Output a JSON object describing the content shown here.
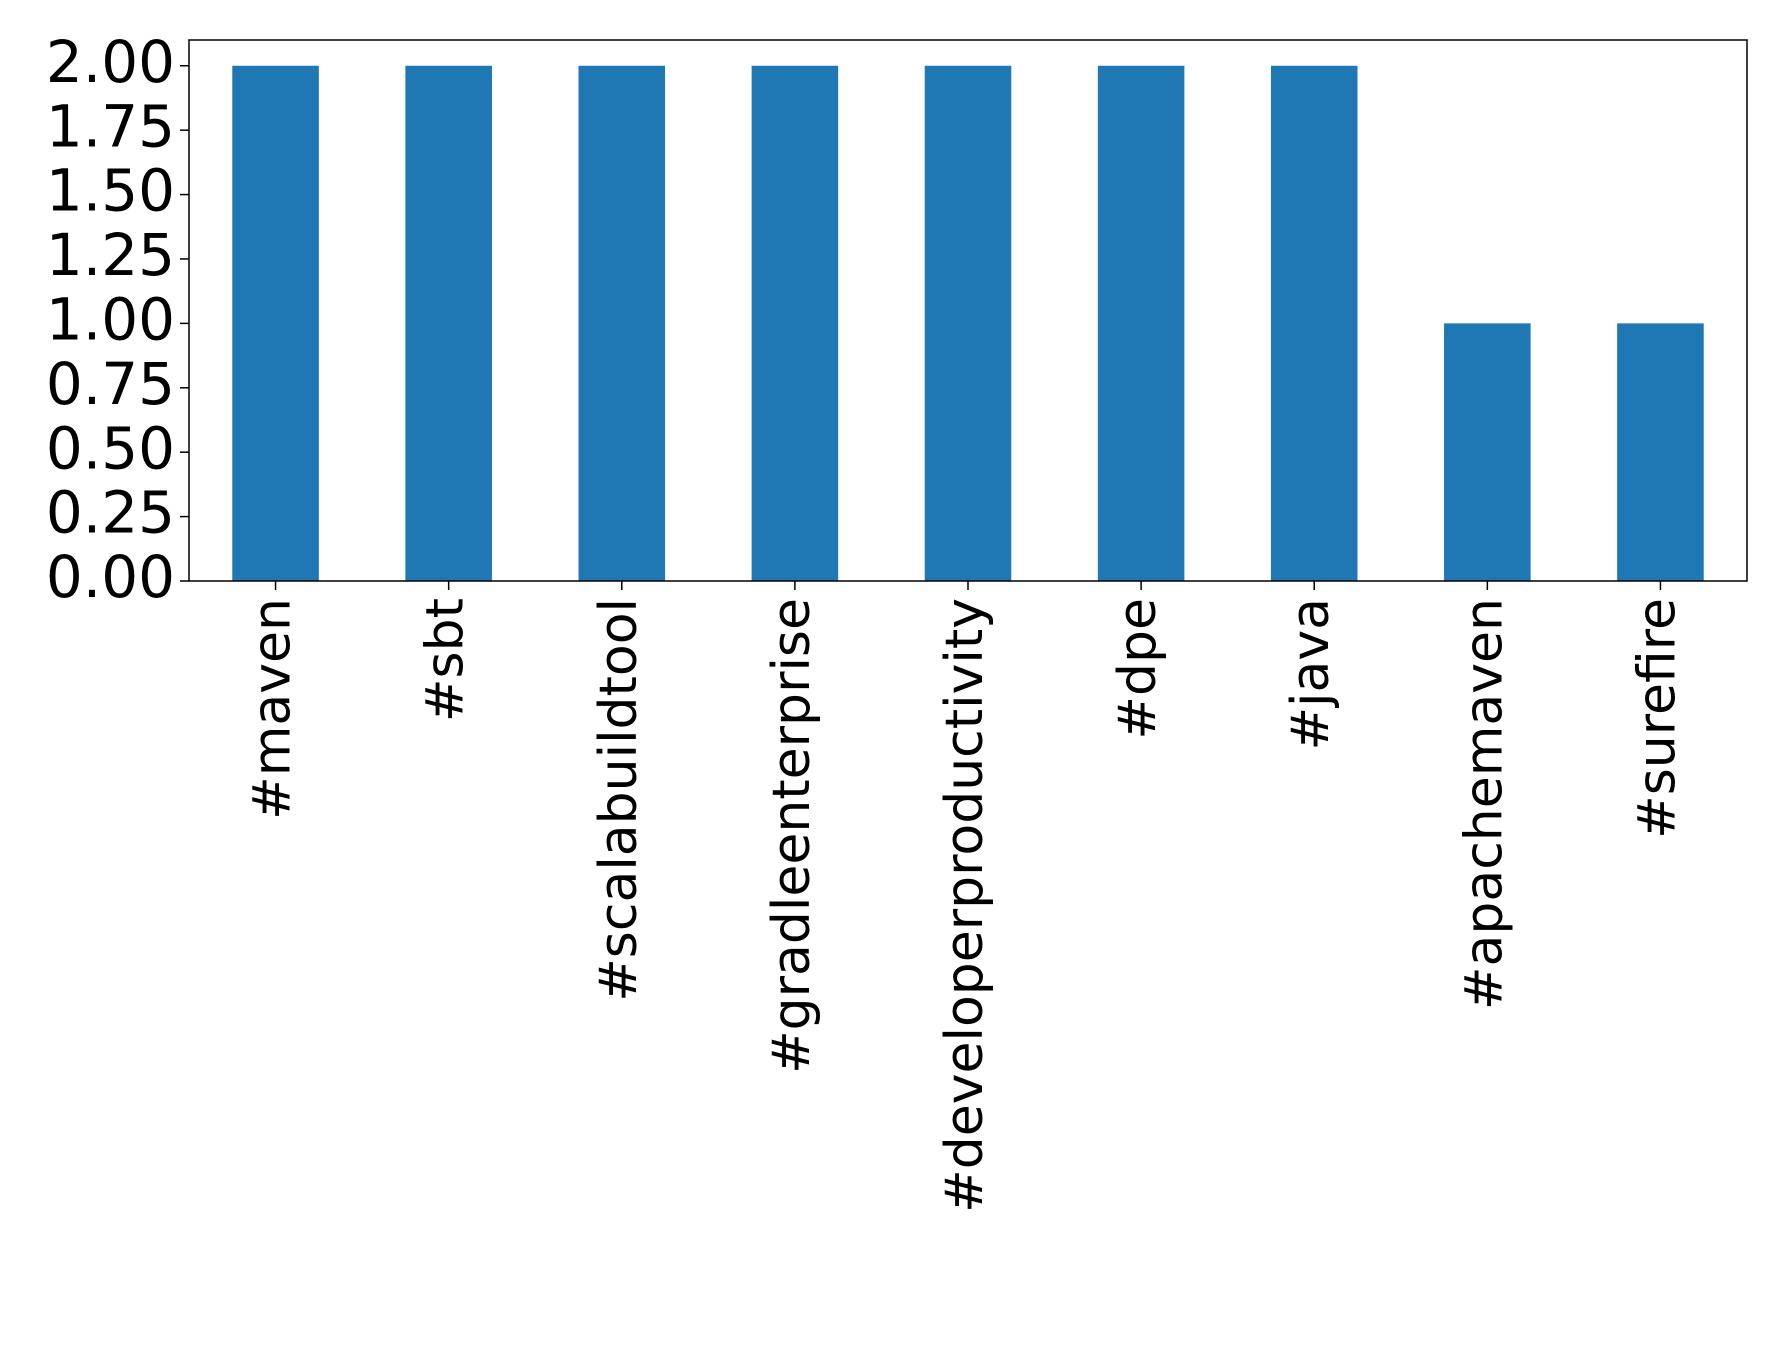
{
  "chart_data": {
    "type": "bar",
    "categories": [
      "#maven",
      "#sbt",
      "#scalabuildtool",
      "#gradleenterprise",
      "#developerproductivity",
      "#dpe",
      "#java",
      "#apachemaven",
      "#surefire"
    ],
    "values": [
      2,
      2,
      2,
      2,
      2,
      2,
      2,
      1,
      1
    ],
    "color": "#1f77b4",
    "ylim": [
      0,
      2.1
    ],
    "yticks": [
      {
        "value": 0,
        "label": "0.00"
      },
      {
        "value": 0.25,
        "label": "0.25"
      },
      {
        "value": 0.5,
        "label": "0.50"
      },
      {
        "value": 0.75,
        "label": "0.75"
      },
      {
        "value": 1,
        "label": "1.00"
      },
      {
        "value": 1.25,
        "label": "1.25"
      },
      {
        "value": 1.5,
        "label": "1.50"
      },
      {
        "value": 1.75,
        "label": "1.75"
      },
      {
        "value": 2,
        "label": "2.00"
      }
    ],
    "grid": false
  }
}
